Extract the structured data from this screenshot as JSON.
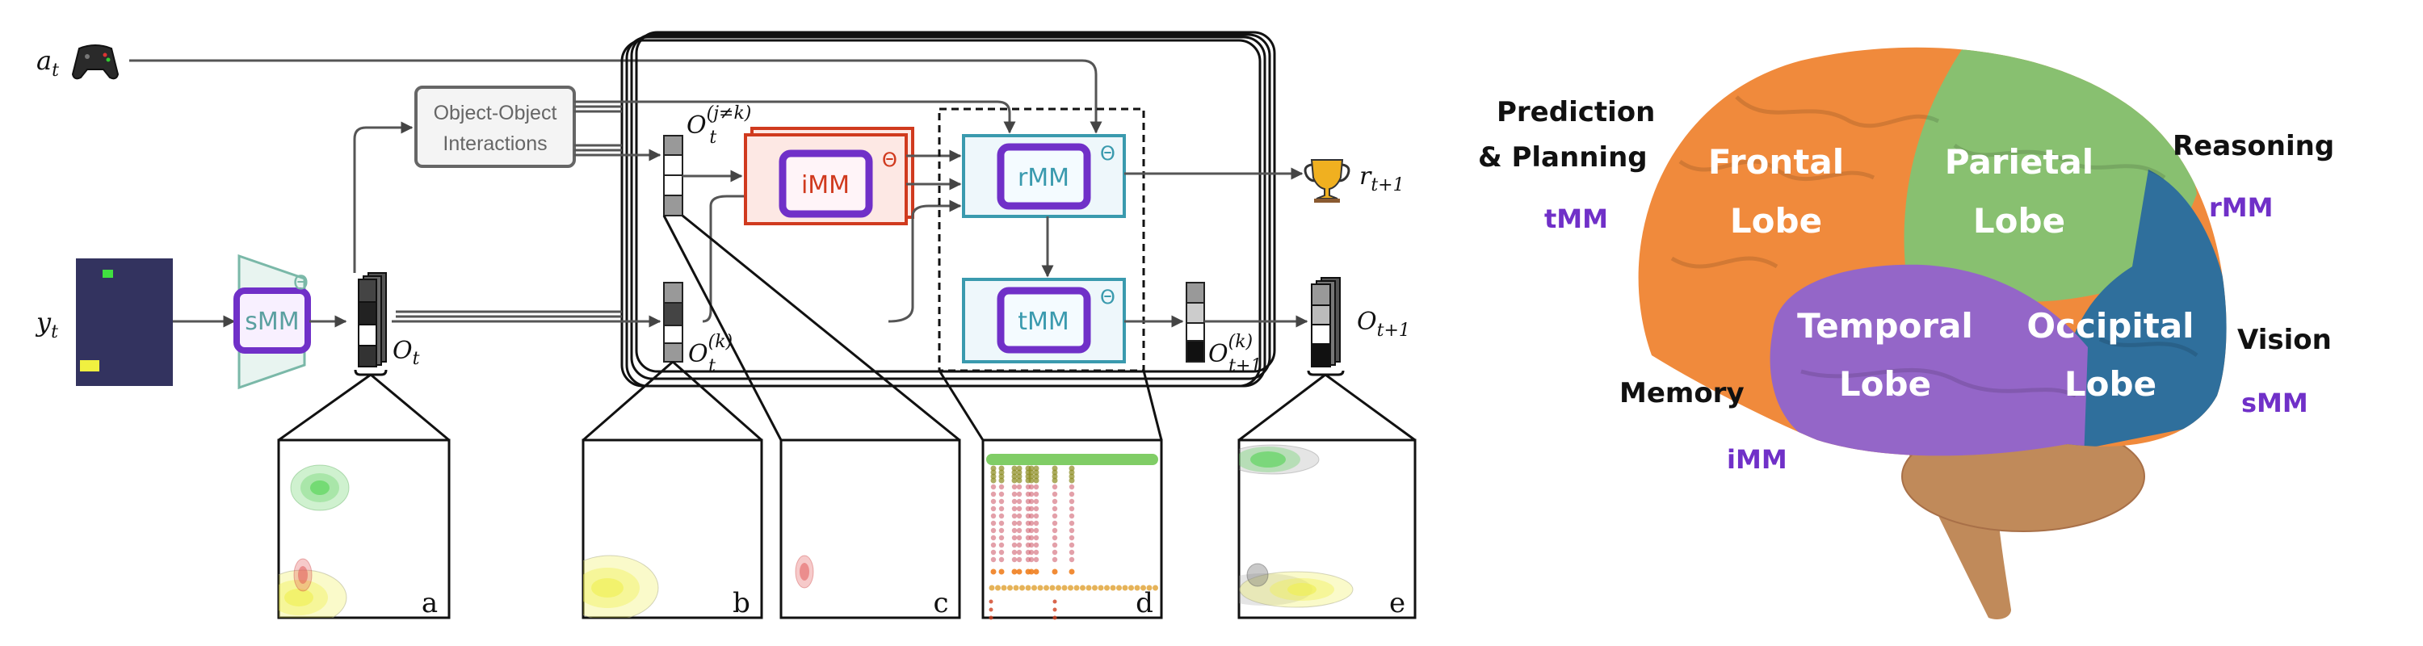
{
  "diagram": {
    "inputs": {
      "action": "a",
      "action_sub": "t",
      "observation": "y",
      "observation_sub": "t"
    },
    "interaction_box": {
      "line1": "Object-Object",
      "line2": "Interactions"
    },
    "modules": {
      "smm": "sMM",
      "imm": "iMM",
      "rmm": "rMM",
      "tmm": "tMM",
      "theta": "Θ"
    },
    "labels": {
      "o_t": "O",
      "o_t_sub": "t",
      "o_other": "O",
      "o_other_sub": "t",
      "o_other_sup": "(j≠k)",
      "o_k": "O",
      "o_k_sub": "t",
      "o_k_sup": "(k)",
      "o_next_k": "O",
      "o_next_k_sub": "t+1",
      "o_next_k_sup": "(k)",
      "o_next": "O",
      "o_next_sub": "t+1",
      "reward": "r",
      "reward_sub": "t+1"
    },
    "panels": [
      "a",
      "b",
      "c",
      "d",
      "e"
    ],
    "icons": {
      "action": "gamepad-icon",
      "reward": "trophy-icon"
    },
    "colors": {
      "imm": "#d03a1e",
      "rmm_tmm": "#3a9aae",
      "inner": "#7030c8",
      "smm": "#7ab8a8",
      "screen": "#33335f"
    }
  },
  "brain": {
    "lobes": {
      "frontal": [
        "Frontal",
        "Lobe"
      ],
      "parietal": [
        "Parietal",
        "Lobe"
      ],
      "temporal": [
        "Temporal",
        "Lobe"
      ],
      "occipital": [
        "Occipital",
        "Lobe"
      ]
    },
    "functions": {
      "prediction": [
        "Prediction",
        "& Planning"
      ],
      "prediction_mm": "tMM",
      "reasoning": "Reasoning",
      "reasoning_mm": "rMM",
      "memory": "Memory",
      "memory_mm": "iMM",
      "vision": "Vision",
      "vision_mm": "sMM"
    },
    "colors": {
      "frontal": "#f08a3c",
      "parietal": "#88c070",
      "temporal": "#9466c8",
      "occipital": "#2f6f9c",
      "cerebellum": "#c08a5a"
    }
  }
}
